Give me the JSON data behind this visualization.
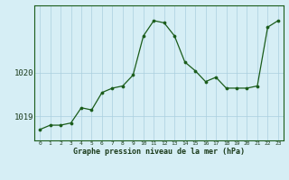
{
  "x": [
    0,
    1,
    2,
    3,
    4,
    5,
    6,
    7,
    8,
    9,
    10,
    11,
    12,
    13,
    14,
    15,
    16,
    17,
    18,
    19,
    20,
    21,
    22,
    23
  ],
  "y": [
    1018.7,
    1018.8,
    1018.8,
    1018.85,
    1019.2,
    1019.15,
    1019.55,
    1019.65,
    1019.7,
    1019.95,
    1020.85,
    1021.2,
    1021.15,
    1020.85,
    1020.25,
    1020.05,
    1019.8,
    1019.9,
    1019.65,
    1019.65,
    1019.65,
    1019.7,
    1021.05,
    1021.2
  ],
  "line_color": "#1a5c1a",
  "marker_color": "#1a5c1a",
  "bg_color": "#d6eef5",
  "grid_color": "#aacfdf",
  "ylabel_left": [
    "1019",
    "1020"
  ],
  "yticks": [
    1019.0,
    1020.0
  ],
  "ylim": [
    1018.45,
    1021.55
  ],
  "xlim": [
    -0.5,
    23.5
  ],
  "xlabel": "Graphe pression niveau de la mer (hPa)",
  "xticks": [
    0,
    1,
    2,
    3,
    4,
    5,
    6,
    7,
    8,
    9,
    10,
    11,
    12,
    13,
    14,
    15,
    16,
    17,
    18,
    19,
    20,
    21,
    22,
    23
  ]
}
